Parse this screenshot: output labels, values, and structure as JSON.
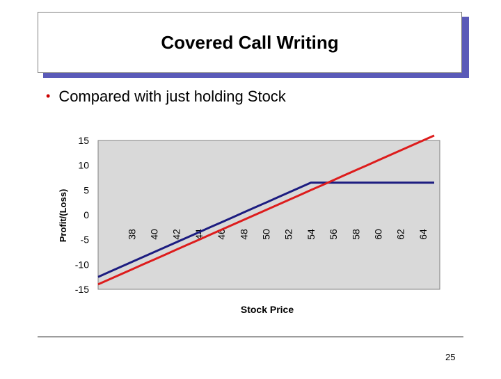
{
  "slide": {
    "title": "Covered Call Writing",
    "bullet": "Compared with just holding Stock",
    "page_number": "25"
  },
  "colors": {
    "title_shadow": "#5a5ab8",
    "bullet": "#cc0000",
    "covered_call_line": "#1c1c80",
    "stock_line": "#dd1c1c",
    "plot_background": "#d9d9d9"
  },
  "chart_data": {
    "type": "line",
    "title": "",
    "xlabel": "Stock Price",
    "ylabel": "Profit/(Loss)",
    "x": [
      35,
      36,
      37,
      38,
      39,
      40,
      41,
      42,
      43,
      44,
      45,
      46,
      47,
      48,
      49,
      50,
      51,
      52,
      53,
      54,
      55,
      56,
      57,
      58,
      59,
      60,
      61,
      62,
      63,
      64,
      65
    ],
    "xlim": [
      35,
      65.5
    ],
    "ylim": [
      -15,
      15
    ],
    "x_ticks": [
      38,
      40,
      42,
      44,
      46,
      48,
      50,
      52,
      54,
      56,
      58,
      60,
      62,
      64
    ],
    "y_ticks": [
      15,
      10,
      5,
      0,
      -5,
      -10,
      -15
    ],
    "grid": false,
    "series": [
      {
        "color": "#1c1c80",
        "values": [
          -12.5,
          -11.5,
          -10.5,
          -9.5,
          -8.5,
          -7.5,
          -6.5,
          -5.5,
          -4.5,
          -3.5,
          -2.5,
          -1.5,
          -0.5,
          0.5,
          1.5,
          2.5,
          3.5,
          4.5,
          5.5,
          6.5,
          6.5,
          6.5,
          6.5,
          6.5,
          6.5,
          6.5,
          6.5,
          6.5,
          6.5,
          6.5,
          6.5
        ]
      },
      {
        "color": "#dd1c1c",
        "values": [
          -14,
          -13,
          -12,
          -11,
          -10,
          -9,
          -8,
          -7,
          -6,
          -5,
          -4,
          -3,
          -2,
          -1,
          0,
          1,
          2,
          3,
          4,
          5,
          6,
          7,
          8,
          9,
          10,
          11,
          12,
          13,
          14,
          15,
          16
        ]
      }
    ]
  }
}
